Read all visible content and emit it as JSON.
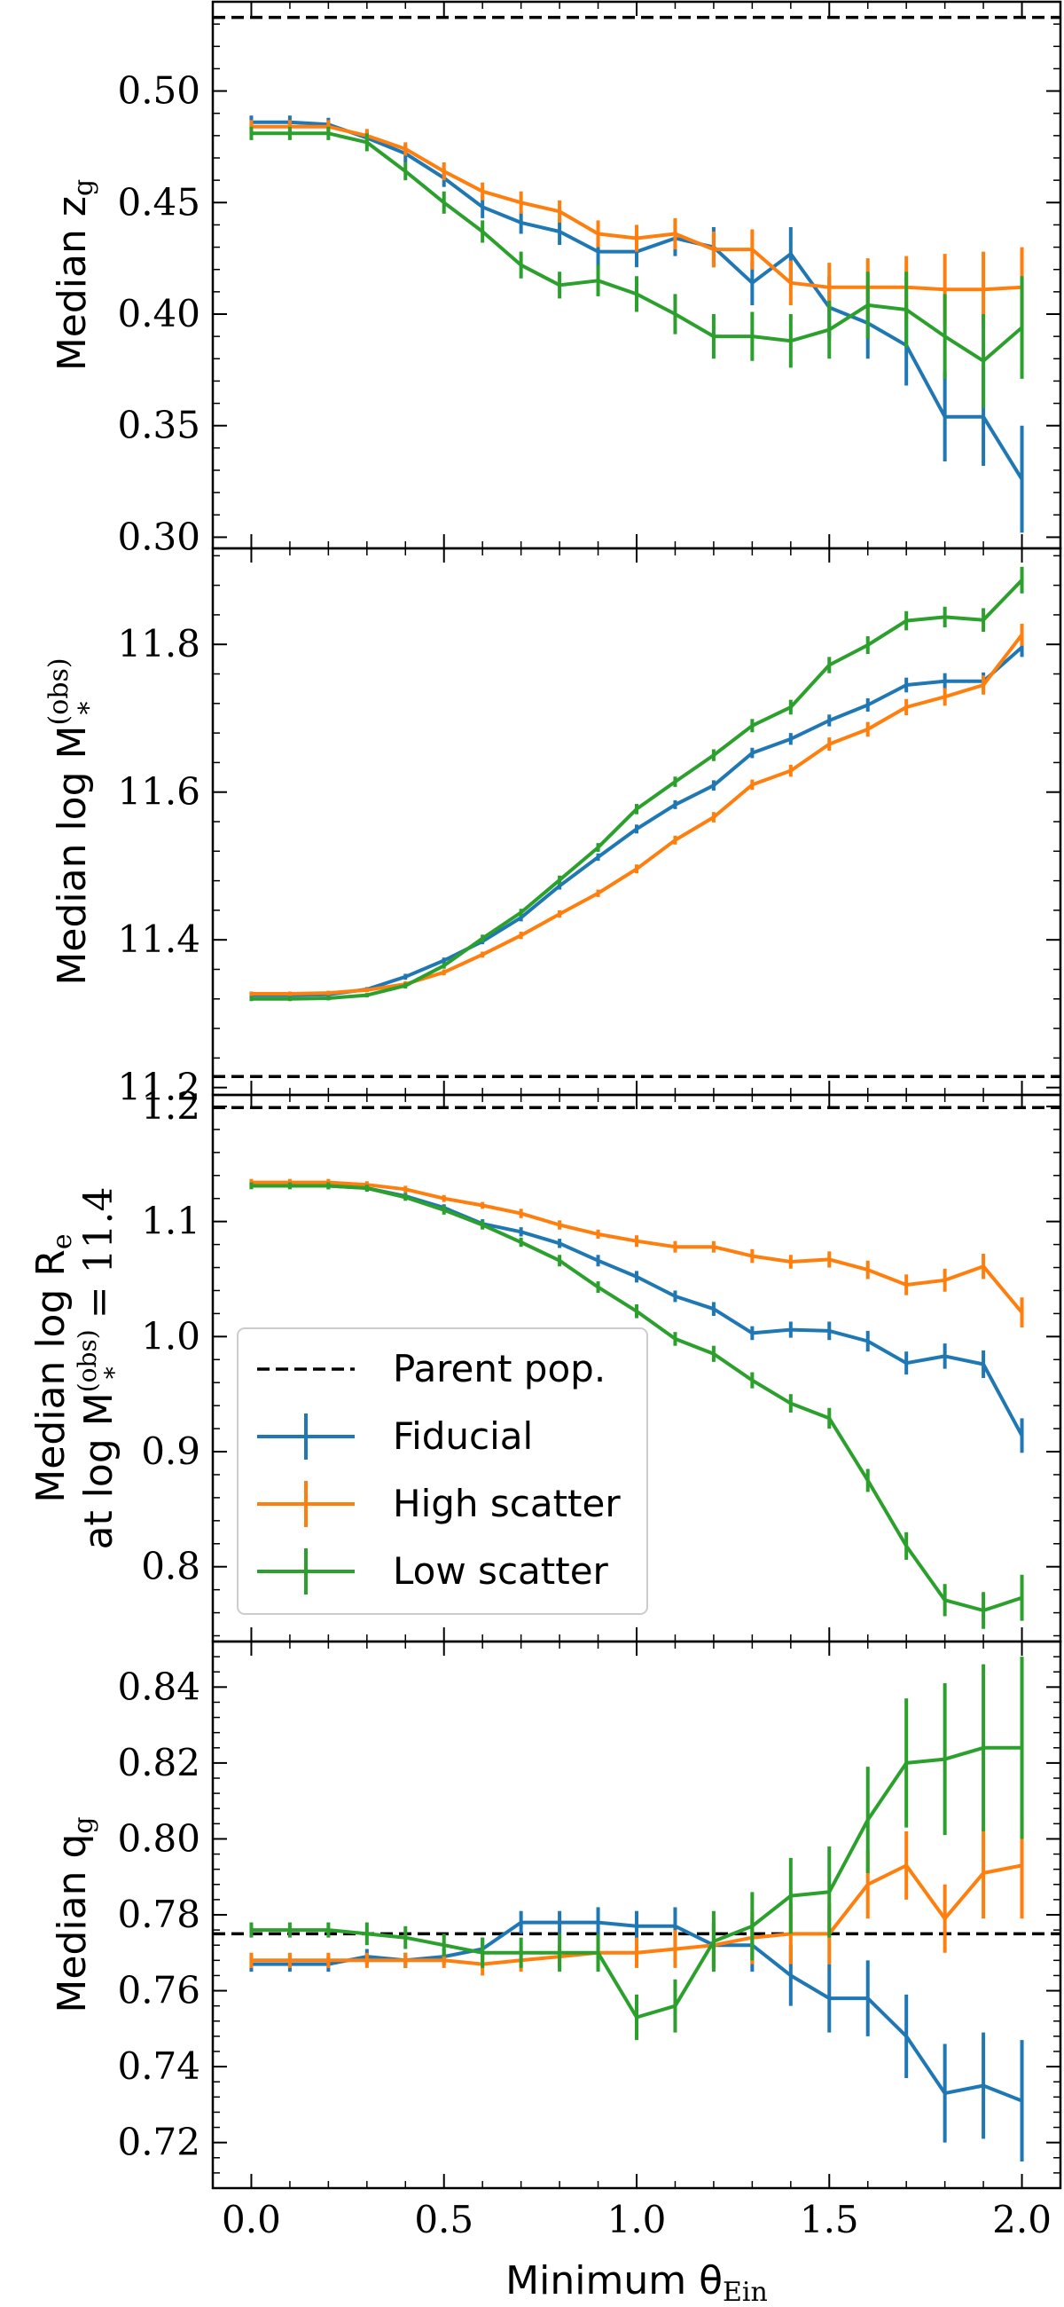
{
  "chart_data": {
    "type": "line",
    "xlabel": "Minimum θ",
    "xlabel_sub": "Ein",
    "x": [
      0.0,
      0.1,
      0.2,
      0.3,
      0.4,
      0.5,
      0.6,
      0.7,
      0.8,
      0.9,
      1.0,
      1.1,
      1.2,
      1.3,
      1.4,
      1.5,
      1.6,
      1.7,
      1.8,
      1.9,
      2.0
    ],
    "xlim": [
      -0.1,
      2.1
    ],
    "xticks": [
      0.0,
      0.5,
      1.0,
      1.5,
      2.0
    ],
    "xtick_labels": [
      "0.0",
      "0.5",
      "1.0",
      "1.5",
      "2.0"
    ],
    "colors": {
      "Fiducial": "#1f77b4",
      "High scatter": "#ff7f0e",
      "Low scatter": "#2ca02c",
      "Parent pop.": "#000000"
    },
    "legend": {
      "panel": 2,
      "placement": "lower-left",
      "entries": [
        {
          "label": "Parent pop.",
          "style": "dashed",
          "color": "#000000"
        },
        {
          "label": "Fiducial",
          "style": "errorbar",
          "color": "#1f77b4"
        },
        {
          "label": "High scatter",
          "style": "errorbar",
          "color": "#ff7f0e"
        },
        {
          "label": "Low scatter",
          "style": "errorbar",
          "color": "#2ca02c"
        }
      ]
    },
    "panels": [
      {
        "ylabel": "Median z",
        "ylabel_sub": "g",
        "ylim": [
          0.295,
          0.54
        ],
        "yticks": [
          0.3,
          0.35,
          0.4,
          0.45,
          0.5
        ],
        "ytick_labels": [
          "0.30",
          "0.35",
          "0.40",
          "0.45",
          "0.50"
        ],
        "parent": 0.533,
        "series": [
          {
            "name": "Fiducial",
            "values": [
              0.486,
              0.486,
              0.485,
              0.479,
              0.472,
              0.461,
              0.448,
              0.441,
              0.437,
              0.428,
              0.428,
              0.434,
              0.43,
              0.414,
              0.427,
              0.403,
              0.396,
              0.386,
              0.354,
              0.354,
              0.326
            ],
            "errors": [
              0.003,
              0.003,
              0.003,
              0.003,
              0.004,
              0.004,
              0.005,
              0.005,
              0.006,
              0.007,
              0.007,
              0.008,
              0.009,
              0.01,
              0.012,
              0.014,
              0.016,
              0.018,
              0.02,
              0.022,
              0.024
            ]
          },
          {
            "name": "High scatter",
            "values": [
              0.484,
              0.484,
              0.484,
              0.48,
              0.474,
              0.464,
              0.455,
              0.45,
              0.446,
              0.436,
              0.434,
              0.436,
              0.429,
              0.429,
              0.414,
              0.412,
              0.412,
              0.412,
              0.411,
              0.411,
              0.412
            ],
            "errors": [
              0.003,
              0.003,
              0.003,
              0.003,
              0.003,
              0.004,
              0.004,
              0.005,
              0.005,
              0.006,
              0.006,
              0.007,
              0.008,
              0.009,
              0.01,
              0.011,
              0.013,
              0.014,
              0.016,
              0.017,
              0.018
            ]
          },
          {
            "name": "Low scatter",
            "values": [
              0.481,
              0.481,
              0.481,
              0.477,
              0.464,
              0.45,
              0.437,
              0.422,
              0.413,
              0.415,
              0.409,
              0.4,
              0.39,
              0.39,
              0.388,
              0.393,
              0.404,
              0.402,
              0.39,
              0.379,
              0.394
            ],
            "errors": [
              0.003,
              0.003,
              0.003,
              0.004,
              0.004,
              0.005,
              0.005,
              0.006,
              0.006,
              0.007,
              0.008,
              0.009,
              0.01,
              0.011,
              0.012,
              0.013,
              0.015,
              0.017,
              0.019,
              0.021,
              0.023
            ]
          }
        ]
      },
      {
        "ylabel": "Median log M",
        "ylabel_sup": "(obs)",
        "ylabel_sub": "*",
        "ylim": [
          11.19,
          11.93
        ],
        "yticks": [
          11.2,
          11.4,
          11.6,
          11.8
        ],
        "ytick_labels": [
          "11.2",
          "11.4",
          "11.6",
          "11.8"
        ],
        "parent": 11.215,
        "series": [
          {
            "name": "Fiducial",
            "values": [
              11.325,
              11.325,
              11.326,
              11.333,
              11.35,
              11.372,
              11.398,
              11.43,
              11.473,
              11.512,
              11.55,
              11.583,
              11.609,
              11.653,
              11.672,
              11.697,
              11.718,
              11.745,
              11.75,
              11.75,
              11.796
            ],
            "errors": [
              0.003,
              0.003,
              0.003,
              0.003,
              0.004,
              0.004,
              0.004,
              0.005,
              0.005,
              0.005,
              0.006,
              0.006,
              0.007,
              0.007,
              0.008,
              0.008,
              0.009,
              0.01,
              0.011,
              0.012,
              0.013
            ]
          },
          {
            "name": "High scatter",
            "values": [
              11.327,
              11.327,
              11.328,
              11.332,
              11.34,
              11.356,
              11.38,
              11.406,
              11.435,
              11.463,
              11.496,
              11.535,
              11.566,
              11.61,
              11.629,
              11.665,
              11.685,
              11.715,
              11.729,
              11.745,
              11.813
            ],
            "errors": [
              0.003,
              0.003,
              0.003,
              0.003,
              0.004,
              0.004,
              0.004,
              0.005,
              0.005,
              0.005,
              0.006,
              0.006,
              0.007,
              0.007,
              0.008,
              0.009,
              0.01,
              0.011,
              0.012,
              0.013,
              0.015
            ]
          },
          {
            "name": "Low scatter",
            "values": [
              11.32,
              11.32,
              11.321,
              11.325,
              11.338,
              11.365,
              11.402,
              11.437,
              11.481,
              11.525,
              11.577,
              11.614,
              11.65,
              11.69,
              11.715,
              11.772,
              11.799,
              11.832,
              11.837,
              11.833,
              11.887
            ],
            "errors": [
              0.003,
              0.003,
              0.003,
              0.003,
              0.004,
              0.004,
              0.005,
              0.005,
              0.006,
              0.006,
              0.007,
              0.007,
              0.008,
              0.009,
              0.01,
              0.011,
              0.012,
              0.013,
              0.014,
              0.016,
              0.018
            ]
          }
        ]
      },
      {
        "ylabel": "Median log R",
        "ylabel_sub": "e",
        "ylabel2": "at log M",
        "ylabel2_sup": "(obs)",
        "ylabel2_sub": "*",
        "ylabel2_tail": " = 11.4",
        "ylim": [
          0.735,
          1.21
        ],
        "yticks": [
          0.8,
          0.9,
          1.0,
          1.1,
          1.2
        ],
        "ytick_labels": [
          "0.8",
          "0.9",
          "1.0",
          "1.1",
          "1.2"
        ],
        "parent": 1.199,
        "series": [
          {
            "name": "Fiducial",
            "values": [
              1.132,
              1.132,
              1.131,
              1.129,
              1.122,
              1.112,
              1.098,
              1.091,
              1.081,
              1.066,
              1.052,
              1.035,
              1.024,
              1.003,
              1.006,
              1.005,
              0.996,
              0.977,
              0.983,
              0.976,
              0.914
            ],
            "errors": [
              0.003,
              0.003,
              0.003,
              0.003,
              0.003,
              0.003,
              0.004,
              0.004,
              0.004,
              0.005,
              0.005,
              0.005,
              0.006,
              0.006,
              0.007,
              0.008,
              0.009,
              0.01,
              0.011,
              0.012,
              0.015
            ]
          },
          {
            "name": "High scatter",
            "values": [
              1.134,
              1.134,
              1.134,
              1.132,
              1.128,
              1.12,
              1.114,
              1.107,
              1.097,
              1.089,
              1.083,
              1.078,
              1.078,
              1.07,
              1.065,
              1.067,
              1.058,
              1.045,
              1.049,
              1.061,
              1.021
            ],
            "errors": [
              0.003,
              0.003,
              0.003,
              0.003,
              0.003,
              0.003,
              0.003,
              0.004,
              0.004,
              0.004,
              0.005,
              0.005,
              0.005,
              0.006,
              0.006,
              0.007,
              0.008,
              0.009,
              0.01,
              0.011,
              0.013
            ]
          },
          {
            "name": "Low scatter",
            "values": [
              1.131,
              1.131,
              1.131,
              1.129,
              1.121,
              1.11,
              1.097,
              1.082,
              1.066,
              1.043,
              1.022,
              0.998,
              0.985,
              0.962,
              0.942,
              0.929,
              0.875,
              0.818,
              0.771,
              0.762,
              0.773
            ],
            "errors": [
              0.003,
              0.003,
              0.003,
              0.003,
              0.003,
              0.004,
              0.004,
              0.004,
              0.005,
              0.005,
              0.006,
              0.006,
              0.007,
              0.007,
              0.008,
              0.009,
              0.01,
              0.012,
              0.014,
              0.016,
              0.02
            ]
          }
        ]
      },
      {
        "ylabel": "Median q",
        "ylabel_sub": "g",
        "ylim": [
          0.708,
          0.852
        ],
        "yticks": [
          0.72,
          0.74,
          0.76,
          0.78,
          0.8,
          0.82,
          0.84
        ],
        "ytick_labels": [
          "0.72",
          "0.74",
          "0.76",
          "0.78",
          "0.80",
          "0.82",
          "0.84"
        ],
        "parent": 0.775,
        "series": [
          {
            "name": "Fiducial",
            "values": [
              0.767,
              0.767,
              0.767,
              0.769,
              0.768,
              0.769,
              0.771,
              0.778,
              0.778,
              0.778,
              0.777,
              0.777,
              0.772,
              0.772,
              0.764,
              0.758,
              0.758,
              0.748,
              0.733,
              0.735,
              0.731
            ],
            "errors": [
              0.002,
              0.002,
              0.002,
              0.002,
              0.002,
              0.002,
              0.003,
              0.003,
              0.003,
              0.004,
              0.004,
              0.005,
              0.006,
              0.007,
              0.008,
              0.009,
              0.01,
              0.011,
              0.013,
              0.014,
              0.016
            ]
          },
          {
            "name": "High scatter",
            "values": [
              0.768,
              0.768,
              0.768,
              0.768,
              0.768,
              0.768,
              0.767,
              0.768,
              0.769,
              0.77,
              0.77,
              0.771,
              0.772,
              0.774,
              0.775,
              0.775,
              0.788,
              0.793,
              0.779,
              0.791,
              0.793
            ],
            "errors": [
              0.002,
              0.002,
              0.002,
              0.002,
              0.002,
              0.002,
              0.003,
              0.003,
              0.003,
              0.004,
              0.004,
              0.005,
              0.006,
              0.007,
              0.008,
              0.008,
              0.009,
              0.009,
              0.009,
              0.012,
              0.014
            ]
          },
          {
            "name": "Low scatter",
            "values": [
              0.776,
              0.776,
              0.776,
              0.775,
              0.774,
              0.772,
              0.77,
              0.77,
              0.77,
              0.77,
              0.753,
              0.756,
              0.773,
              0.777,
              0.785,
              0.786,
              0.805,
              0.82,
              0.821,
              0.824,
              0.824
            ],
            "errors": [
              0.002,
              0.002,
              0.002,
              0.003,
              0.003,
              0.003,
              0.004,
              0.004,
              0.005,
              0.005,
              0.006,
              0.007,
              0.008,
              0.009,
              0.01,
              0.012,
              0.014,
              0.017,
              0.02,
              0.022,
              0.024
            ]
          }
        ]
      }
    ]
  }
}
